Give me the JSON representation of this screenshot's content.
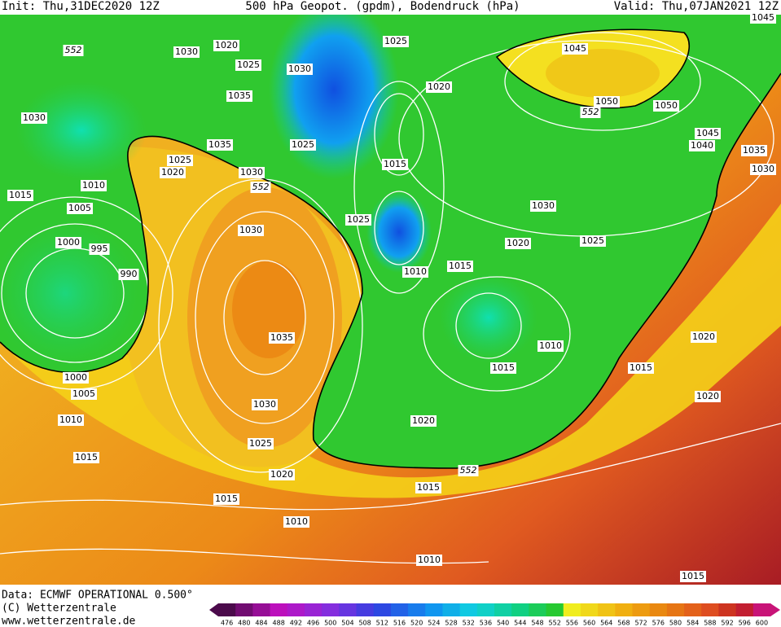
{
  "header": {
    "init": "Init: Thu,31DEC2020 12Z",
    "title": "500 hPa Geopot. (gpdm), Bodendruck (hPa)",
    "valid": "Valid: Thu,07JAN2021 12Z"
  },
  "map": {
    "isobars": [
      "1020",
      "1030",
      "1025",
      "1030",
      "1025",
      "1020",
      "1045",
      "1050",
      "1050",
      "1045",
      "1040",
      "1035",
      "1030",
      "1045",
      "1035",
      "1030",
      "1035",
      "1025",
      "1025",
      "1020",
      "1030",
      "1015",
      "1010",
      "1015",
      "1005",
      "1025",
      "1030",
      "1000",
      "995",
      "990",
      "1030",
      "1020",
      "1025",
      "1015",
      "1010",
      "1035",
      "1010",
      "1015",
      "1015",
      "1020",
      "1020",
      "1000",
      "1005",
      "1010",
      "1030",
      "1020",
      "1025",
      "1015",
      "1020",
      "1015",
      "1015",
      "1010",
      "1010",
      "1015"
    ],
    "contour_552": [
      "552",
      "552",
      "552",
      "552"
    ]
  },
  "footer": {
    "data": "Data: ECMWF OPERATIONAL 0.500°",
    "copyright": "(C) Wetterzentrale",
    "url": "www.wetterzentrale.de"
  },
  "colorbar": {
    "labels": [
      "476",
      "480",
      "484",
      "488",
      "492",
      "496",
      "500",
      "504",
      "508",
      "512",
      "516",
      "520",
      "524",
      "528",
      "532",
      "536",
      "540",
      "544",
      "548",
      "552",
      "556",
      "560",
      "564",
      "568",
      "572",
      "576",
      "580",
      "584",
      "588",
      "592",
      "596",
      "600"
    ]
  }
}
